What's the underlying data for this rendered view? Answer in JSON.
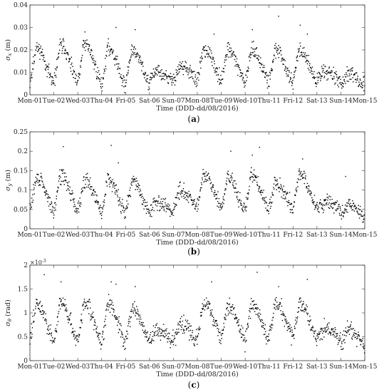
{
  "chart_data": [
    {
      "type": "scatter",
      "panel": "(a)",
      "caption_letter": "a",
      "ylabel_symbol": "σ",
      "ylabel_sub": "x",
      "ylabel_unit": "(m)",
      "ylim": [
        0,
        0.04
      ],
      "yticks": [
        0,
        0.01,
        0.02,
        0.03,
        0.04
      ],
      "ytick_labels": [
        "0",
        "0.01",
        "0.02",
        "0.03",
        "0.04"
      ],
      "exponent": "",
      "exponent_base": "",
      "xlabel": "Time (DDD-dd/08/2016)",
      "xlim": [
        0,
        14
      ],
      "xtick_labels": [
        "Mon-01",
        "Tue-02",
        "Wed-03",
        "Thu-04",
        "Fri-05",
        "Sat-06",
        "Sun-07",
        "Mon-08",
        "Tue-09",
        "Wed-10",
        "Thu-11",
        "Fri-12",
        "Sat-13",
        "Sun-14",
        "Mon-15"
      ],
      "daily_peak": [
        0.021,
        0.022,
        0.023,
        0.021,
        0.02,
        0.01,
        0.013,
        0.02,
        0.02,
        0.02,
        0.02,
        0.02,
        0.011,
        0.009
      ],
      "daily_low": [
        0.004,
        0.004,
        0.004,
        0.003,
        0.004,
        0.006,
        0.006,
        0.006,
        0.005,
        0.005,
        0.005,
        0.005,
        0.006,
        0.004
      ],
      "noise": 0.0025,
      "outliers": [
        [
          1.4,
          0.025
        ],
        [
          2.3,
          0.028
        ],
        [
          3.6,
          0.03
        ],
        [
          4.4,
          0.029
        ],
        [
          7.7,
          0.027
        ],
        [
          9.3,
          0.029
        ],
        [
          10.4,
          0.035
        ],
        [
          11.3,
          0.031
        ],
        [
          11.6,
          0.027
        ]
      ],
      "seed": 11
    },
    {
      "type": "scatter",
      "panel": "(b)",
      "caption_letter": "b",
      "ylabel_symbol": "σ",
      "ylabel_sub": "y",
      "ylabel_unit": "(m)",
      "ylim": [
        0,
        0.25
      ],
      "yticks": [
        0,
        0.05,
        0.1,
        0.15,
        0.2,
        0.25
      ],
      "ytick_labels": [
        "0",
        "0.05",
        "0.1",
        "0.15",
        "0.2",
        "0.25"
      ],
      "exponent": "",
      "exponent_base": "",
      "xlabel": "Time (DDD-dd/08/2016)",
      "xlim": [
        0,
        14
      ],
      "xtick_labels": [
        "Mon-01",
        "Tue-02",
        "Wed-03",
        "Thu-04",
        "Fri-05",
        "Sat-06",
        "Sun-07",
        "Mon-08",
        "Tue-09",
        "Wed-10",
        "Thu-11",
        "Fri-12",
        "Sat-13",
        "Sun-14",
        "Mon-15"
      ],
      "daily_peak": [
        0.13,
        0.14,
        0.13,
        0.13,
        0.12,
        0.07,
        0.1,
        0.14,
        0.13,
        0.14,
        0.12,
        0.14,
        0.07,
        0.06
      ],
      "daily_low": [
        0.04,
        0.04,
        0.04,
        0.03,
        0.04,
        0.04,
        0.05,
        0.05,
        0.04,
        0.04,
        0.05,
        0.05,
        0.05,
        0.03
      ],
      "noise": 0.015,
      "outliers": [
        [
          1.4,
          0.212
        ],
        [
          3.4,
          0.215
        ],
        [
          3.7,
          0.17
        ],
        [
          8.4,
          0.2
        ],
        [
          9.3,
          0.19
        ],
        [
          9.6,
          0.21
        ],
        [
          11.4,
          0.18
        ],
        [
          13.2,
          0.135
        ]
      ],
      "seed": 29
    },
    {
      "type": "scatter",
      "panel": "(c)",
      "caption_letter": "c",
      "ylabel_symbol": "σ",
      "ylabel_sub": "θ",
      "ylabel_unit": "(rad)",
      "ylim": [
        0,
        2
      ],
      "yticks": [
        0,
        0.5,
        1,
        1.5,
        2
      ],
      "ytick_labels": [
        "0",
        "0.5",
        "1",
        "1.5",
        "2"
      ],
      "exponent": "-3",
      "exponent_base": "×10",
      "xlabel": "Time (DDD-dd/08/2016)",
      "xlim": [
        0,
        14
      ],
      "xtick_labels": [
        "Mon-01",
        "Tue-02",
        "Wed-03",
        "Thu-04",
        "Fri-05",
        "Sat-06",
        "Sun-07",
        "Mon-08",
        "Tue-09",
        "Wed-10",
        "Thu-11",
        "Fri-12",
        "Sat-13",
        "Sun-14",
        "Mon-15"
      ],
      "daily_peak": [
        1.2,
        1.25,
        1.2,
        1.2,
        1.1,
        0.65,
        0.8,
        1.2,
        1.15,
        1.2,
        1.2,
        1.2,
        0.7,
        0.65
      ],
      "daily_low": [
        0.35,
        0.35,
        0.35,
        0.3,
        0.35,
        0.4,
        0.4,
        0.45,
        0.4,
        0.4,
        0.45,
        0.4,
        0.45,
        0.3
      ],
      "noise": 0.13,
      "outliers": [
        [
          0.6,
          1.8
        ],
        [
          1.3,
          1.65
        ],
        [
          3.4,
          1.65
        ],
        [
          3.6,
          1.6
        ],
        [
          4.4,
          1.55
        ],
        [
          7.6,
          1.65
        ],
        [
          9.5,
          1.85
        ],
        [
          10.4,
          1.55
        ],
        [
          11.6,
          1.7
        ]
      ],
      "seed": 47
    }
  ]
}
